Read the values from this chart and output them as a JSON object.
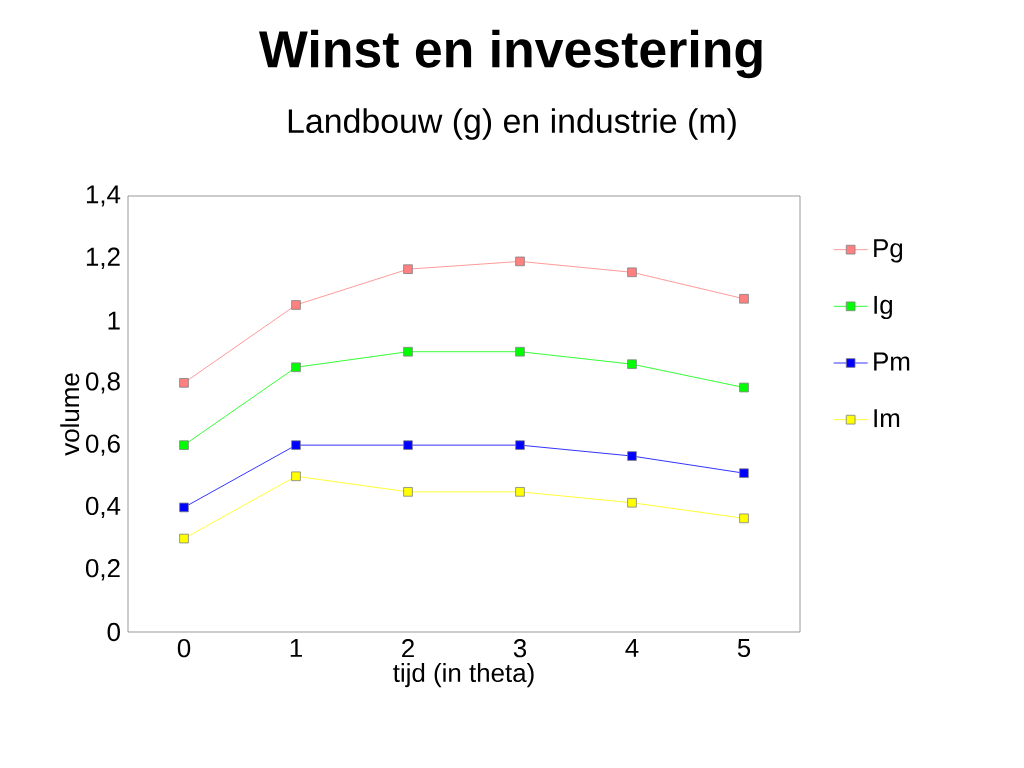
{
  "chart_data": {
    "type": "line",
    "title": "Winst en investering",
    "subtitle": "Landbouw (g) en industrie (m)",
    "xlabel": "tijd (in theta)",
    "ylabel": "volume",
    "x": [
      0,
      1,
      2,
      3,
      4,
      5
    ],
    "series": [
      {
        "name": "Pg",
        "color": "#ff8080",
        "values": [
          0.8,
          1.05,
          1.165,
          1.19,
          1.155,
          1.07
        ]
      },
      {
        "name": "Ig",
        "color": "#00ff00",
        "values": [
          0.6,
          0.85,
          0.9,
          0.9,
          0.86,
          0.785
        ]
      },
      {
        "name": "Pm",
        "color": "#0000ff",
        "values": [
          0.4,
          0.6,
          0.6,
          0.6,
          0.565,
          0.51
        ]
      },
      {
        "name": "Im",
        "color": "#ffff00",
        "values": [
          0.3,
          0.5,
          0.45,
          0.45,
          0.415,
          0.365
        ]
      }
    ],
    "xlim": [
      -0.5,
      5.5
    ],
    "ylim": [
      0,
      1.4
    ],
    "xticks": [
      0,
      1,
      2,
      3,
      4,
      5
    ],
    "yticks": [
      0,
      {
        "value": 0.2,
        "label": "0,2"
      },
      {
        "value": 0.4,
        "label": "0,4"
      },
      {
        "value": 0.6,
        "label": "0,6"
      },
      {
        "value": 0.8,
        "label": "0,8"
      },
      1,
      {
        "value": 1.2,
        "label": "1,2"
      },
      {
        "value": 1.4,
        "label": "1,4"
      }
    ],
    "grid": false,
    "legend": "right",
    "marker": "square",
    "line_style": "solid"
  }
}
